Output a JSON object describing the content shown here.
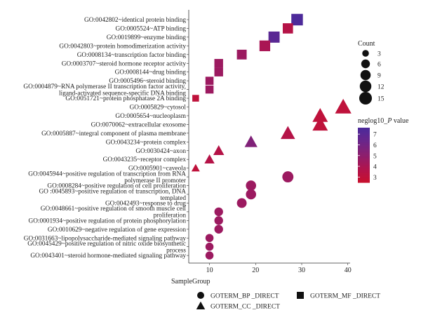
{
  "chart_data": {
    "type": "scatter",
    "x_ticks": [
      10,
      20,
      30,
      40
    ],
    "xlim": [
      5.5,
      40.5
    ],
    "categories": [
      "GO:0042802~identical protein binding",
      "GO:0005524~ATP binding",
      "GO:0019899~enzyme binding",
      "GO:0042803~protein homodimerization activity",
      "GO:0008134~transcription factor binding",
      "GO:0003707~steroid hormone receptor activity",
      "GO:0008144~drug binding",
      "GO:0005496~steroid binding",
      "GO:0004879~RNA polymerase II transcription factor activity, ligand-activated sequence-specific DNA binding",
      "GO:0051721~protein phosphatase 2A binding",
      "GO:0005829~cytosol",
      "GO:0005654~nucleoplasm",
      "GO:0070062~extracellular exosome",
      "GO:0005887~integral component of plasma membrane",
      "GO:0043234~protein complex",
      "GO:0030424~axon",
      "GO:0043235~receptor complex",
      "GO:0005901~caveola",
      "GO:0045944~positive regulation of transcription from RNA polymerase II promoter",
      "GO:0008284~positive regulation of cell proliferation",
      "GO :0045893~positive regulation of transcription, DNA templated",
      "GO:0042493~response to drug",
      "GO:0048661~positive regulation of smooth muscle cell proliferation",
      "GO:0001934~positive regulation of protein phosphorylation",
      "GO:0010629~negative regulation of gene expression",
      "GO:0031663~lipopolysaccharide-mediated signaling pathway",
      "GO:0045429~positive regulation of nitric oxide biosynthetic process",
      "GO:0043401~steroid hormone-mediated signaling pathway"
    ],
    "label_lines": [
      [
        "GO:0042802~identical protein binding"
      ],
      [
        "GO:0005524~ATP binding"
      ],
      [
        "GO:0019899~enzyme binding"
      ],
      [
        "GO:0042803~protein homodimerization activity"
      ],
      [
        "GO:0008134~transcription factor binding"
      ],
      [
        "GO:0003707~steroid hormone receptor activity"
      ],
      [
        "GO:0008144~drug binding"
      ],
      [
        "GO:0005496~steroid binding"
      ],
      [
        "GO:0004879~RNA polymerase II transcription factor activity,",
        "ligand-activated sequence-specific DNA binding"
      ],
      [
        "GO:0051721~protein phosphatase 2A binding"
      ],
      [
        "GO:0005829~cytosol"
      ],
      [
        "GO:0005654~nucleoplasm"
      ],
      [
        "GO:0070062~extracellular exosome"
      ],
      [
        "GO:0005887~integral component of plasma membrane"
      ],
      [
        "GO:0043234~protein complex"
      ],
      [
        "GO:0030424~axon"
      ],
      [
        "GO:0043235~receptor complex"
      ],
      [
        "GO:0005901~caveola"
      ],
      [
        "GO:0045944~positive regulation of transcription from RNA",
        "polymerase II promoter"
      ],
      [
        "GO:0008284~positive regulation of cell proliferation"
      ],
      [
        "GO :0045893~positive regulation of transcription, DNA",
        "templated"
      ],
      [
        "GO:0042493~response to drug"
      ],
      [
        "GO:0048661~positive regulation of smooth muscle cell",
        "proliferation"
      ],
      [
        "GO:0001934~positive regulation of protein phosphorylation"
      ],
      [
        "GO:0010629~negative regulation of gene expression"
      ],
      [
        "GO:0031663~lipopolysaccharide-mediated signaling pathway"
      ],
      [
        "GO:0045429~positive regulation of nitric oxide biosynthetic",
        "process"
      ],
      [
        "GO:0043401~steroid hormone-mediated signaling pathway"
      ]
    ],
    "points": [
      {
        "term": "GO:0042802~identical protein binding",
        "group": "GOTERM_MF_DIRECT",
        "x": 29,
        "count": 12,
        "neglog10_p": 7.5
      },
      {
        "term": "GO:0005524~ATP binding",
        "group": "GOTERM_MF_DIRECT",
        "x": 27,
        "count": 9,
        "neglog10_p": 3.5
      },
      {
        "term": "GO:0019899~enzyme binding",
        "group": "GOTERM_MF_DIRECT",
        "x": 24,
        "count": 11,
        "neglog10_p": 7.0
      },
      {
        "term": "GO:0042803~protein homodimerization activity",
        "group": "GOTERM_MF_DIRECT",
        "x": 22,
        "count": 10,
        "neglog10_p": 4.0
      },
      {
        "term": "GO:0008134~transcription factor binding",
        "group": "GOTERM_MF_DIRECT",
        "x": 17,
        "count": 8,
        "neglog10_p": 4.5
      },
      {
        "term": "GO:0003707~steroid hormone receptor activity",
        "group": "GOTERM_MF_DIRECT",
        "x": 12,
        "count": 6,
        "neglog10_p": 4.5
      },
      {
        "term": "GO:0008144~drug binding",
        "group": "GOTERM_MF_DIRECT",
        "x": 12,
        "count": 6,
        "neglog10_p": 4.5
      },
      {
        "term": "GO:0005496~steroid binding",
        "group": "GOTERM_MF_DIRECT",
        "x": 10,
        "count": 5,
        "neglog10_p": 4.5
      },
      {
        "term": "GO:0004879~RNA polymerase II transcription factor activity, ligand-activated sequence-specific DNA binding",
        "group": "GOTERM_MF_DIRECT",
        "x": 10,
        "count": 5,
        "neglog10_p": 4.5
      },
      {
        "term": "GO:0051721~protein phosphatase 2A binding",
        "group": "GOTERM_MF_DIRECT",
        "x": 7,
        "count": 3,
        "neglog10_p": 3.0
      },
      {
        "term": "GO:0005829~cytosol",
        "group": "GOTERM_CC_DIRECT",
        "x": 39,
        "count": 16,
        "neglog10_p": 3.0
      },
      {
        "term": "GO:0005654~nucleoplasm",
        "group": "GOTERM_CC_DIRECT",
        "x": 34,
        "count": 14,
        "neglog10_p": 3.0
      },
      {
        "term": "GO:0070062~extracellular exosome",
        "group": "GOTERM_CC_DIRECT",
        "x": 34,
        "count": 14,
        "neglog10_p": 3.0
      },
      {
        "term": "GO:0005887~integral component of plasma membrane",
        "group": "GOTERM_CC_DIRECT",
        "x": 27,
        "count": 12,
        "neglog10_p": 3.5
      },
      {
        "term": "GO:0043234~protein complex",
        "group": "GOTERM_CC_DIRECT",
        "x": 19,
        "count": 9,
        "neglog10_p": 5.5
      },
      {
        "term": "GO:0030424~axon",
        "group": "GOTERM_CC_DIRECT",
        "x": 12,
        "count": 6,
        "neglog10_p": 3.5
      },
      {
        "term": "GO:0043235~receptor complex",
        "group": "GOTERM_CC_DIRECT",
        "x": 10,
        "count": 5,
        "neglog10_p": 3.5
      },
      {
        "term": "GO:0005901~caveola",
        "group": "GOTERM_CC_DIRECT",
        "x": 7,
        "count": 3,
        "neglog10_p": 3.0
      },
      {
        "term": "GO:0045944~positive regulation of transcription from RNA polymerase II promoter",
        "group": "GOTERM_BP_DIRECT",
        "x": 27,
        "count": 11,
        "neglog10_p": 4.5
      },
      {
        "term": "GO:0008284~positive regulation of cell proliferation",
        "group": "GOTERM_BP_DIRECT",
        "x": 19,
        "count": 9,
        "neglog10_p": 4.5
      },
      {
        "term": "GO :0045893~positive regulation of transcription, DNA templated",
        "group": "GOTERM_BP_DIRECT",
        "x": 19,
        "count": 9,
        "neglog10_p": 4.5
      },
      {
        "term": "GO:0042493~response to drug",
        "group": "GOTERM_BP_DIRECT",
        "x": 17,
        "count": 8,
        "neglog10_p": 4.5
      },
      {
        "term": "GO:0048661~positive regulation of smooth muscle cell proliferation",
        "group": "GOTERM_BP_DIRECT",
        "x": 12,
        "count": 6,
        "neglog10_p": 4.5
      },
      {
        "term": "GO:0001934~positive regulation of protein phosphorylation",
        "group": "GOTERM_BP_DIRECT",
        "x": 12,
        "count": 6,
        "neglog10_p": 4.5
      },
      {
        "term": "GO:0010629~negative regulation of gene expression",
        "group": "GOTERM_BP_DIRECT",
        "x": 12,
        "count": 6,
        "neglog10_p": 4.5
      },
      {
        "term": "GO:0031663~lipopolysaccharide-mediated signaling pathway",
        "group": "GOTERM_BP_DIRECT",
        "x": 10,
        "count": 5,
        "neglog10_p": 4.5
      },
      {
        "term": "GO:0045429~positive regulation of nitric oxide biosynthetic process",
        "group": "GOTERM_BP_DIRECT",
        "x": 10,
        "count": 5,
        "neglog10_p": 4.5
      },
      {
        "term": "GO:0043401~steroid hormone-mediated signaling pathway",
        "group": "GOTERM_BP_DIRECT",
        "x": 10,
        "count": 5,
        "neglog10_p": 4.5
      }
    ],
    "legend_count": {
      "title": "Count",
      "values": [
        3,
        6,
        9,
        12,
        15
      ],
      "labels": [
        "3",
        "6",
        "9",
        "12",
        "15"
      ]
    },
    "legend_color": {
      "title_prefix": "neglog10_",
      "title_italic": "P",
      "title_suffix": " value",
      "ticks": [
        7,
        6,
        5,
        4,
        3
      ],
      "tick_labels": [
        "7",
        "6",
        "5",
        "4",
        "3"
      ],
      "range": [
        2.5,
        7.6
      ],
      "colors": [
        "#c8102e",
        "#b0144e",
        "#8c1f6e",
        "#6a268a",
        "#4b2a9b"
      ]
    },
    "legend_group": {
      "title": "SampleGroup",
      "items": [
        {
          "label": "GOTERM_BP _DIRECT",
          "shape": "circle"
        },
        {
          "label": "GOTERM_MF _DIRECT",
          "shape": "square"
        },
        {
          "label": "GOTERM_CC _DIRECT",
          "shape": "triangle"
        }
      ]
    },
    "grid": false,
    "legend_position": "right and bottom"
  }
}
